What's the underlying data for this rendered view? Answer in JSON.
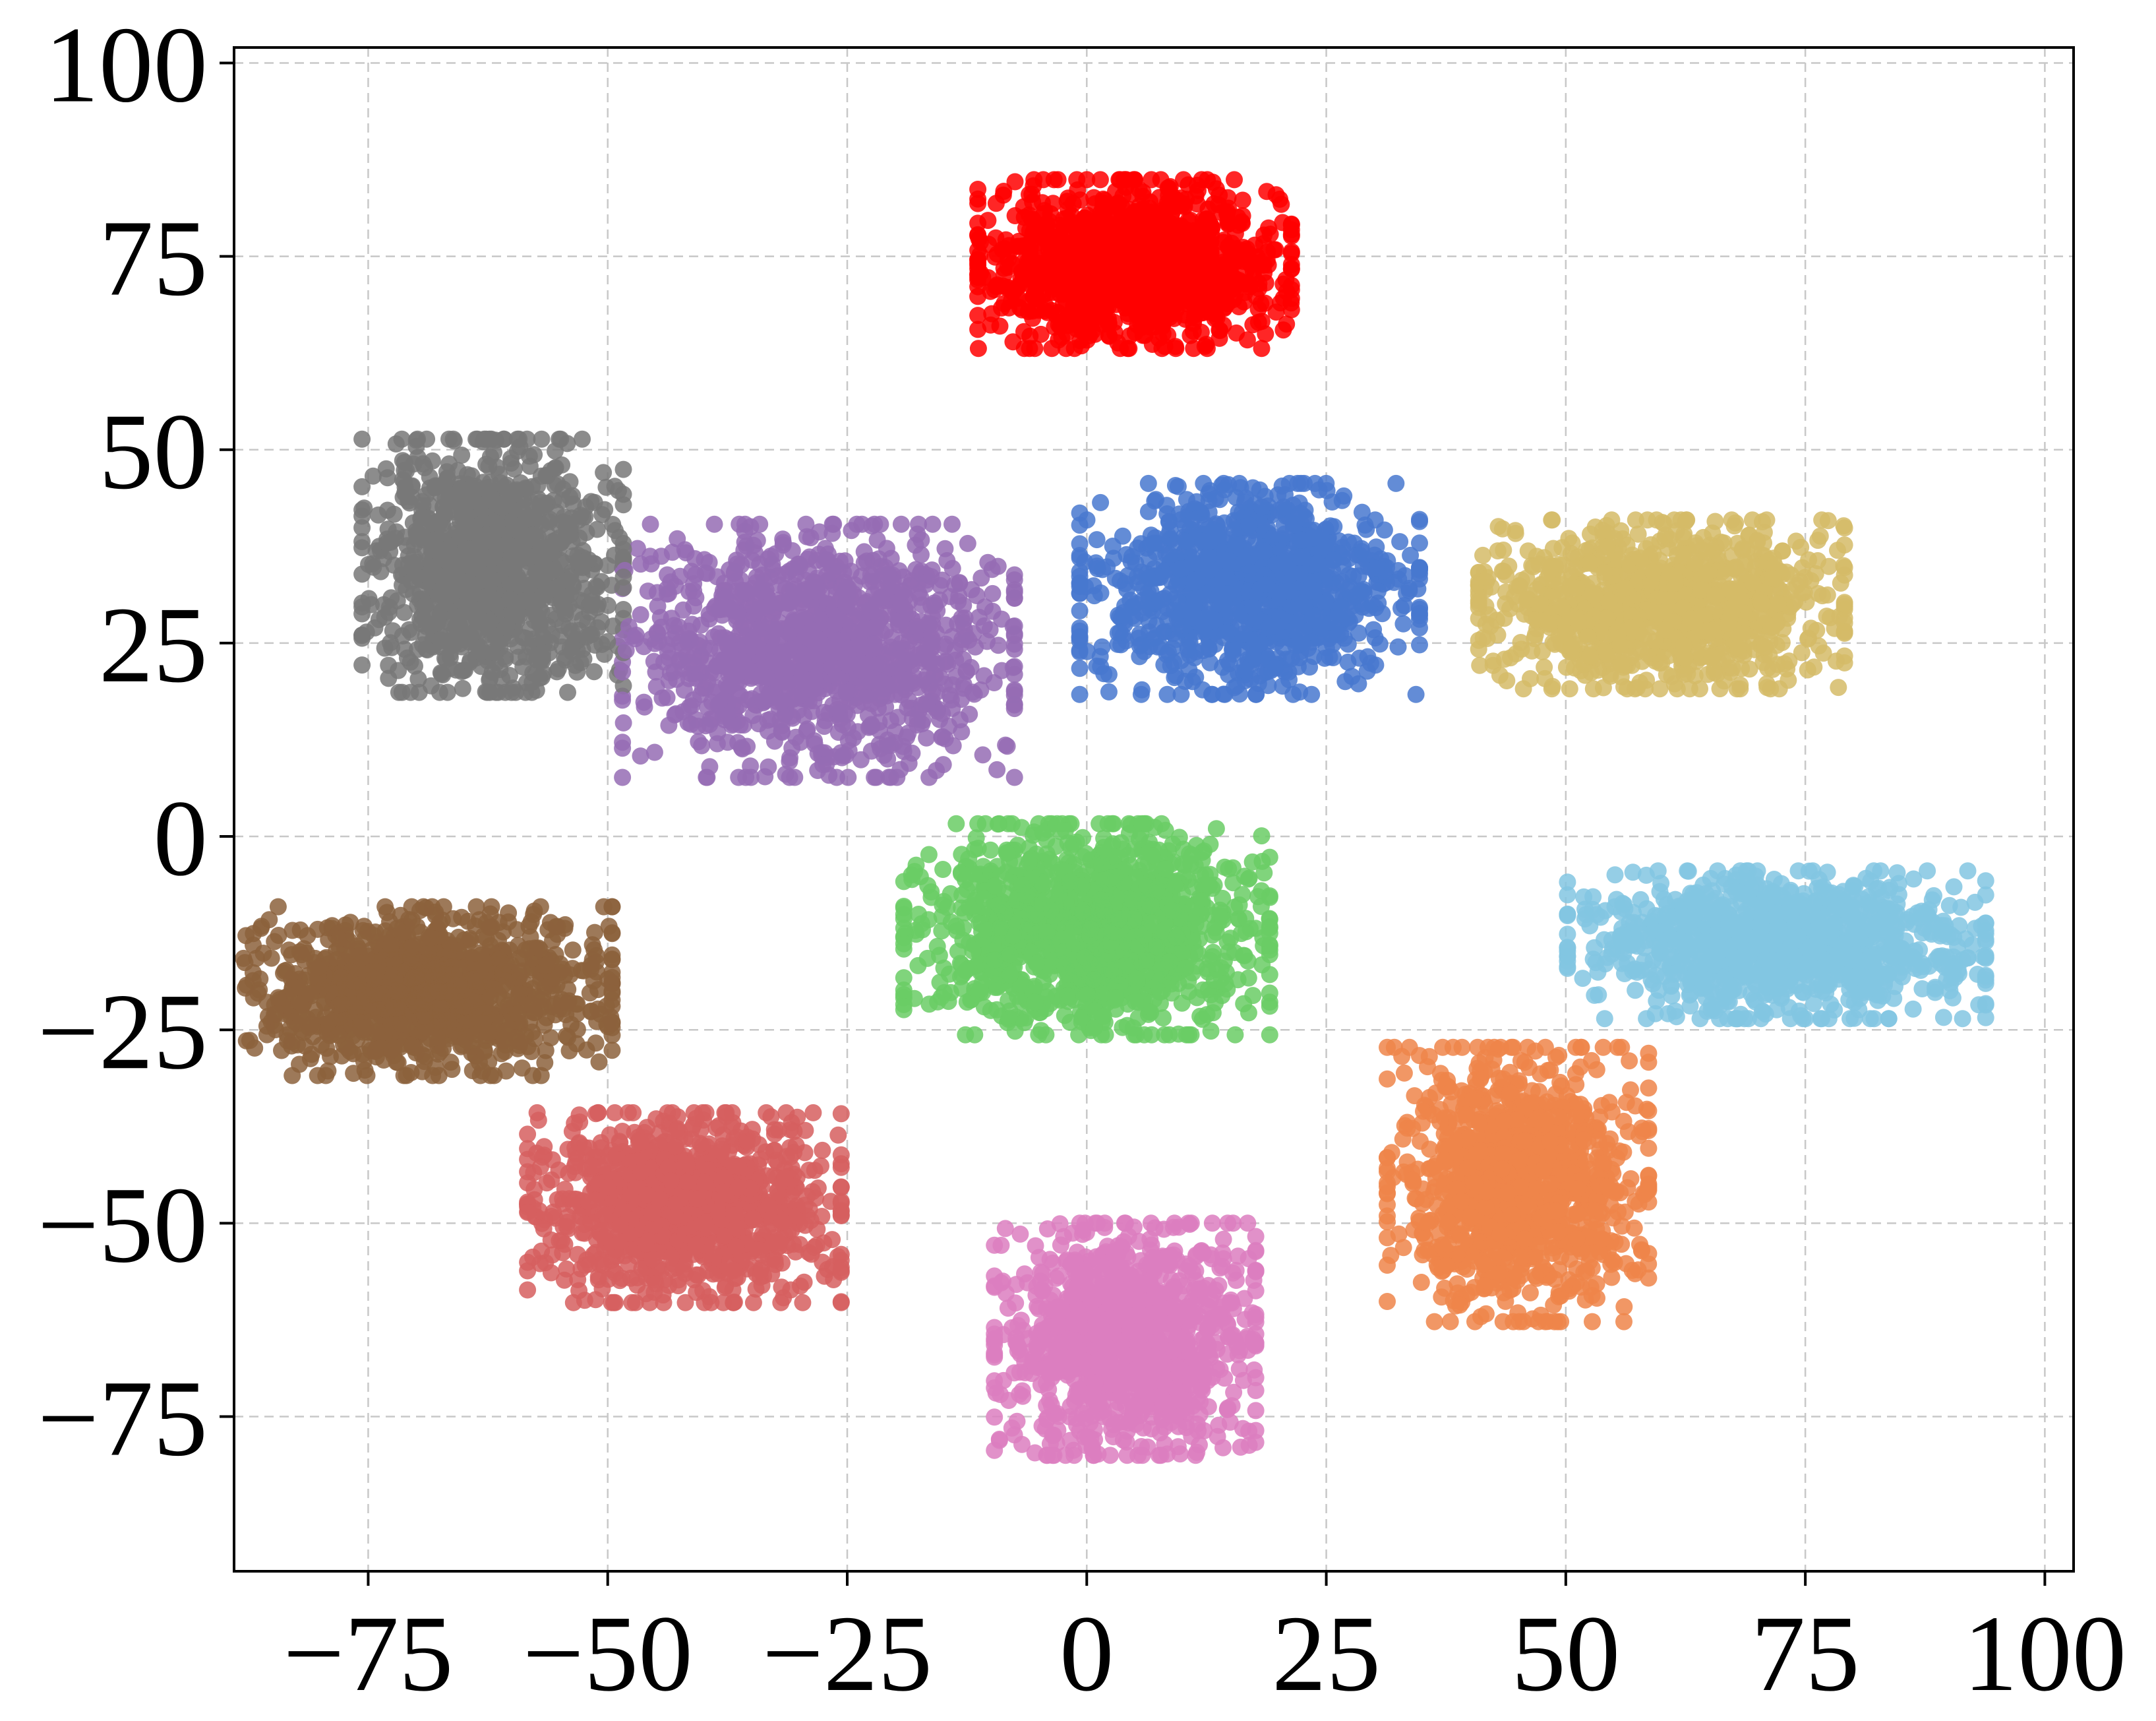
{
  "chart_data": {
    "type": "scatter",
    "title": "",
    "xlabel": "",
    "ylabel": "",
    "xlim": [
      -89,
      103
    ],
    "ylim": [
      -95,
      102
    ],
    "xticks": [
      -75,
      -50,
      -25,
      0,
      25,
      50,
      75,
      100
    ],
    "yticks": [
      -75,
      -50,
      -25,
      0,
      25,
      50,
      75,
      100
    ],
    "xtick_labels": [
      "−75",
      "−50",
      "−25",
      "0",
      "25",
      "50",
      "75",
      "100"
    ],
    "ytick_labels": [
      "−75",
      "−50",
      "−25",
      "0",
      "25",
      "50",
      "75",
      "100"
    ],
    "grid": true,
    "legend": "none",
    "clusters": [
      {
        "color": "#ff0000",
        "center": [
          5,
          74
        ],
        "spread": [
          12,
          8
        ],
        "count": 1300
      },
      {
        "color": "#4878cf",
        "center": [
          17,
          32
        ],
        "spread": [
          13,
          10
        ],
        "count": 1100
      },
      {
        "color": "#d5bb67",
        "center": [
          60,
          30
        ],
        "spread": [
          14,
          8
        ],
        "count": 1100
      },
      {
        "color": "#787878",
        "center": [
          -62,
          35
        ],
        "spread": [
          10,
          12
        ],
        "count": 1100
      },
      {
        "color": "#956cb4",
        "center": [
          -28,
          24
        ],
        "spread": [
          15,
          12
        ],
        "count": 1200
      },
      {
        "color": "#6acc65",
        "center": [
          0,
          -12
        ],
        "spread": [
          14,
          10
        ],
        "count": 1300
      },
      {
        "color": "#82c6e2",
        "center": [
          72,
          -14
        ],
        "spread": [
          16,
          7
        ],
        "count": 1100
      },
      {
        "color": "#8c613c",
        "center": [
          -70,
          -20
        ],
        "spread": [
          15,
          8
        ],
        "count": 1200
      },
      {
        "color": "#d65f5f",
        "center": [
          -42,
          -48
        ],
        "spread": [
          12,
          9
        ],
        "count": 1200
      },
      {
        "color": "#ee854a",
        "center": [
          45,
          -45
        ],
        "spread": [
          10,
          13
        ],
        "count": 1100
      },
      {
        "color": "#dc7ec0",
        "center": [
          4,
          -65
        ],
        "spread": [
          10,
          11
        ],
        "count": 1100
      }
    ]
  }
}
